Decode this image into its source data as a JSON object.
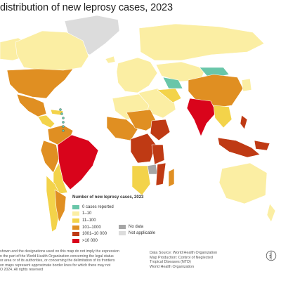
{
  "title": " distribution of new leprosy cases, 2023",
  "legend": {
    "title": "Number of new leprosy cases, 2023",
    "categories": [
      {
        "label": "0 cases reported",
        "color": "#69c6a9"
      },
      {
        "label": "1–10",
        "color": "#fbeea3"
      },
      {
        "label": "11–100",
        "color": "#f3d34a"
      },
      {
        "label": "101–1000",
        "color": "#e08f22"
      },
      {
        "label": "1001–10 000",
        "color": "#bf3a14"
      },
      {
        "label": ">10 000",
        "color": "#d9041b"
      }
    ],
    "other": [
      {
        "label": "No data",
        "color": "#a6a6a6"
      },
      {
        "label": "Not applicable",
        "color": "#dcdcdc"
      }
    ]
  },
  "disclaimer": [
    "shown and the designations used on this map do not imply the expression",
    "n the part of the World Health Organization concerning the legal status",
    "or area or of its authorities, or concerning the delimitation of its frontiers",
    "on maps represent approximate border lines for which there may not",
    "O 2024. All rights reserved"
  ],
  "source": [
    "Data Source: World Health Organization",
    "Map Production: Control of Neglected",
    "Tropical Diseases (NTD)",
    "World Health Organization"
  ],
  "icons": {
    "logo": "who-emblem-icon"
  }
}
